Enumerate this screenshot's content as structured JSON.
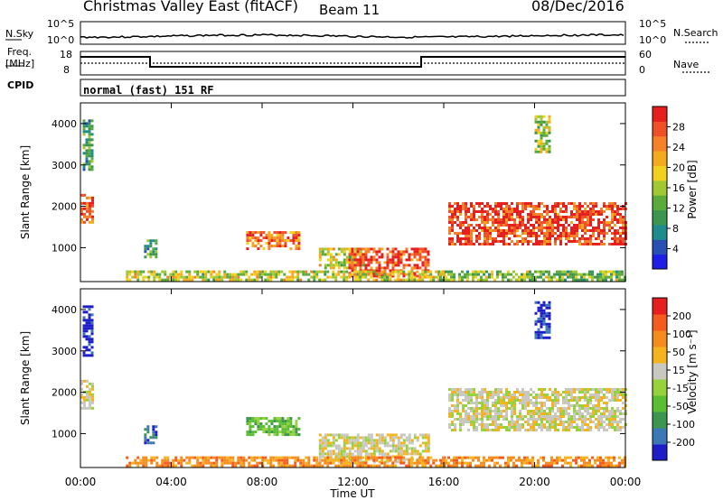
{
  "header": {
    "title": "Christmas Valley East (fitACF)",
    "beam": "Beam 11",
    "date": "08/Dec/2016"
  },
  "noise_panel": {
    "left_label": "N.Sky",
    "left_ticks": [
      "10^5",
      "10^0"
    ],
    "right_label": "N.Search",
    "right_ticks": [
      "10^5",
      "10^0"
    ]
  },
  "freq_panel": {
    "left_label_1": "Freq.",
    "left_label_2": "[MHz]",
    "left_ticks": [
      "18",
      "8"
    ],
    "right_label": "Nave",
    "right_ticks": [
      "60",
      "0"
    ]
  },
  "cpid": {
    "label": "CPID",
    "mode_text": "normal (fast) 151 RF"
  },
  "chart_data": [
    {
      "type": "heatmap",
      "name": "power",
      "ylabel": "Slant Range [km]",
      "y_ticks": [
        "4000",
        "3000",
        "2000",
        "1000"
      ],
      "ylim": [
        180,
        4500
      ],
      "colorbar": {
        "label": "Power [dB]",
        "ticks": [
          "28",
          "24",
          "20",
          "16",
          "12",
          "8",
          "4"
        ],
        "range": [
          0,
          32
        ],
        "colors": [
          "#1e1ee6",
          "#2850b4",
          "#1e8c8c",
          "#3c9650",
          "#5aaa3c",
          "#a0c832",
          "#f0d21e",
          "#f5aa1e",
          "#f58228",
          "#f05028",
          "#e61e1e"
        ]
      },
      "regions": [
        {
          "t0": 0.0,
          "t1": 0.5,
          "r0": 1600,
          "r1": 2300,
          "level": 0.85
        },
        {
          "t0": 0.1,
          "t1": 0.5,
          "r0": 2900,
          "r1": 4100,
          "level": 0.35
        },
        {
          "t0": 2.8,
          "t1": 3.3,
          "r0": 800,
          "r1": 1200,
          "level": 0.35
        },
        {
          "t0": 7.3,
          "t1": 9.6,
          "r0": 1000,
          "r1": 1400,
          "level": 0.8
        },
        {
          "t0": 10.5,
          "t1": 12.5,
          "r0": 500,
          "r1": 1000,
          "level": 0.55
        },
        {
          "t0": 11.8,
          "t1": 15.3,
          "r0": 300,
          "r1": 1000,
          "level": 0.9
        },
        {
          "t0": 2.0,
          "t1": 16.0,
          "r0": 250,
          "r1": 450,
          "level": 0.55
        },
        {
          "t0": 16.2,
          "t1": 24.0,
          "r0": 1100,
          "r1": 2100,
          "level": 0.9
        },
        {
          "t0": 15.8,
          "t1": 24.0,
          "r0": 250,
          "r1": 450,
          "level": 0.45
        },
        {
          "t0": 20.0,
          "t1": 20.7,
          "r0": 3300,
          "r1": 4200,
          "level": 0.5
        }
      ]
    },
    {
      "type": "heatmap",
      "name": "velocity",
      "xlabel": "Time UT",
      "ylabel": "Slant Range [km]",
      "x_ticks": [
        "00:00",
        "04:00",
        "08:00",
        "12:00",
        "16:00",
        "20:00",
        "00:00"
      ],
      "xlim": [
        0,
        24
      ],
      "y_ticks": [
        "4000",
        "3000",
        "2000",
        "1000"
      ],
      "ylim": [
        180,
        4500
      ],
      "colorbar": {
        "label": "Velocity [m s⁻¹]",
        "ticks": [
          "200",
          "100",
          "50",
          "15",
          "-15",
          "-50",
          "-100",
          "-200"
        ],
        "colors": [
          "#1e1ec8",
          "#3c78b4",
          "#3c9650",
          "#5abe32",
          "#96d23c",
          "#c8c8c0",
          "#f5b41e",
          "#f58c1e",
          "#f55a1e",
          "#e61e1e"
        ]
      },
      "regions": [
        {
          "t0": 0.0,
          "t1": 0.5,
          "r0": 1600,
          "r1": 2300,
          "cls": "gray"
        },
        {
          "t0": 0.1,
          "t1": 0.5,
          "r0": 2900,
          "r1": 4100,
          "cls": "blue"
        },
        {
          "t0": 2.8,
          "t1": 3.3,
          "r0": 800,
          "r1": 1200,
          "cls": "teal"
        },
        {
          "t0": 7.3,
          "t1": 9.6,
          "r0": 1000,
          "r1": 1400,
          "cls": "green"
        },
        {
          "t0": 10.5,
          "t1": 15.3,
          "r0": 300,
          "r1": 1000,
          "cls": "gray"
        },
        {
          "t0": 2.0,
          "t1": 16.0,
          "r0": 250,
          "r1": 450,
          "cls": "orange"
        },
        {
          "t0": 16.2,
          "t1": 24.0,
          "r0": 1100,
          "r1": 2100,
          "cls": "gray"
        },
        {
          "t0": 15.8,
          "t1": 24.0,
          "r0": 250,
          "r1": 450,
          "cls": "orange"
        },
        {
          "t0": 20.0,
          "t1": 20.7,
          "r0": 3300,
          "r1": 4200,
          "cls": "blue"
        }
      ]
    }
  ]
}
